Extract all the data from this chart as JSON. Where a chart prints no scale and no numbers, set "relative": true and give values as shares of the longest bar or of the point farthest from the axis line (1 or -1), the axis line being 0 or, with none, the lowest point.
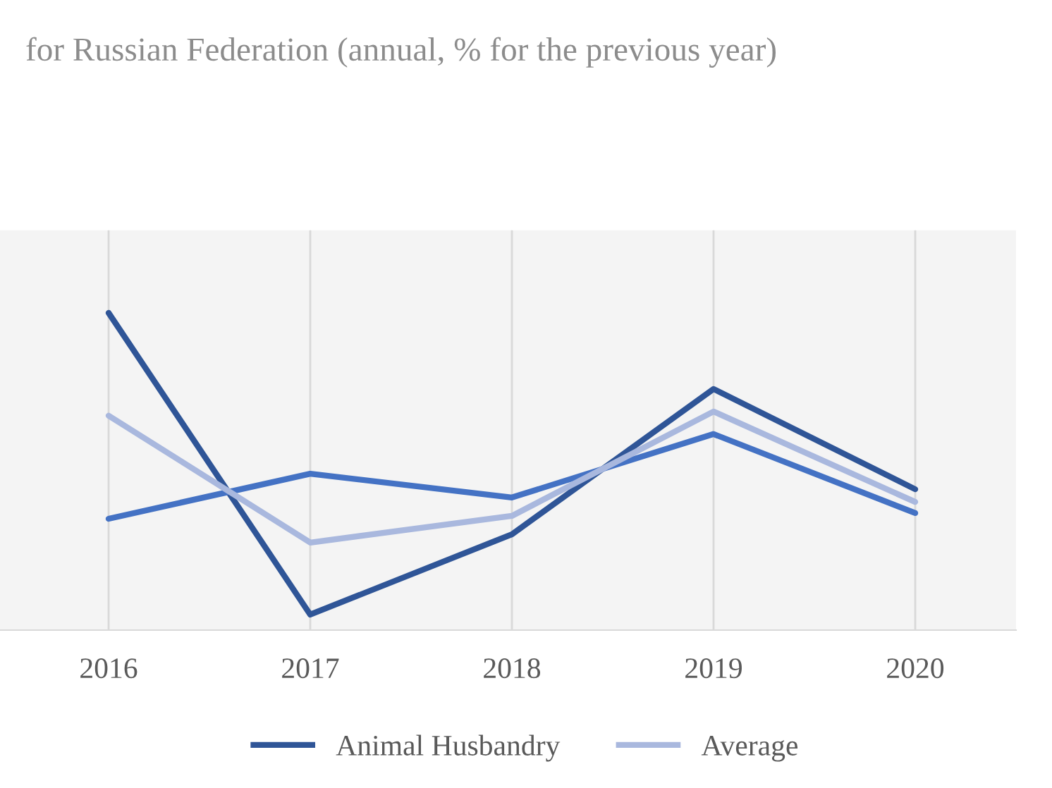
{
  "chart_data": {
    "type": "line",
    "title": "for Russian Federation (annual, % for the previous year)",
    "categories": [
      "2016",
      "2017",
      "2018",
      "2019",
      "2020"
    ],
    "relative": true,
    "series": [
      {
        "name": "Animal Husbandry",
        "color": "#2f5597",
        "values": [
          1,
          0.049,
          0.302,
          0.76,
          0.444
        ]
      },
      {
        "color": "#4472c4",
        "values": [
          0.351,
          0.493,
          0.418,
          0.618,
          0.369
        ]
      },
      {
        "name": "Average",
        "color": "#a9b8de",
        "values": [
          0.676,
          0.276,
          0.36,
          0.689,
          0.404
        ]
      }
    ],
    "grid": "x",
    "legend": "bottom",
    "line_style": "solid",
    "marker": "none"
  }
}
